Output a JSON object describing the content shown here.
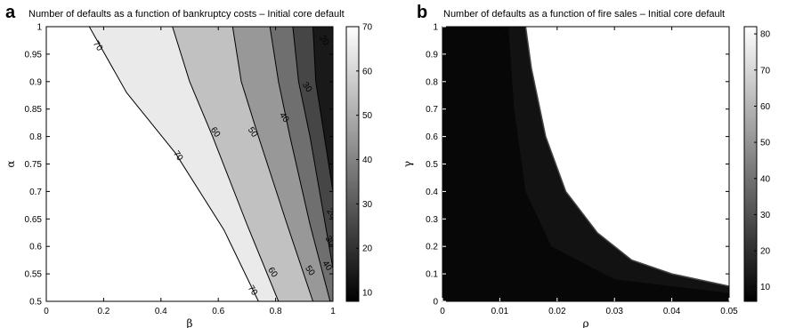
{
  "panels": [
    {
      "letter": "a",
      "title": "Number of defaults as a function of bankruptcy costs – Initial core default",
      "xlabel": "β",
      "ylabel": "α",
      "colorbar_ticks": [
        "10",
        "20",
        "30",
        "40",
        "50",
        "60",
        "70"
      ],
      "contour_labels": [
        "70",
        "70",
        "70",
        "60",
        "60",
        "50",
        "50",
        "40",
        "40",
        "30",
        "20",
        "20",
        "30"
      ]
    },
    {
      "letter": "b",
      "title": "Number of defaults as a function of fire sales – Initial core default",
      "xlabel": "ρ",
      "ylabel": "γ",
      "colorbar_ticks": [
        "10",
        "20",
        "30",
        "40",
        "50",
        "60",
        "70",
        "80"
      ]
    }
  ],
  "chart_data": [
    {
      "type": "heatmap",
      "subtype": "filled-contour",
      "title": "Number of defaults as a function of bankruptcy costs – Initial core default",
      "xlabel": "β",
      "ylabel": "α",
      "xlim": [
        0,
        1
      ],
      "ylim": [
        0.5,
        1
      ],
      "xticks": [
        "0",
        "0.2",
        "0.4",
        "0.6",
        "0.8",
        "1"
      ],
      "yticks": [
        "0.5",
        "0.55",
        "0.6",
        "0.65",
        "0.7",
        "0.75",
        "0.8",
        "0.85",
        "0.9",
        "0.95",
        "1"
      ],
      "colorbar": {
        "min": 8,
        "max": 70,
        "ticks": [
          10,
          20,
          30,
          40,
          50,
          60,
          70
        ],
        "colormap": "gray"
      },
      "contour_levels": [
        {
          "level": 70,
          "points": [
            [
              0.15,
              1.0
            ],
            [
              0.28,
              0.88
            ],
            [
              0.45,
              0.77
            ],
            [
              0.62,
              0.63
            ],
            [
              0.74,
              0.5
            ]
          ]
        },
        {
          "level": 60,
          "points": [
            [
              0.44,
              1.0
            ],
            [
              0.5,
              0.9
            ],
            [
              0.58,
              0.8
            ],
            [
              0.7,
              0.64
            ],
            [
              0.81,
              0.5
            ]
          ]
        },
        {
          "level": 50,
          "points": [
            [
              0.65,
              1.0
            ],
            [
              0.68,
              0.9
            ],
            [
              0.74,
              0.8
            ],
            [
              0.84,
              0.64
            ],
            [
              0.93,
              0.5
            ]
          ]
        },
        {
          "level": 40,
          "points": [
            [
              0.78,
              1.0
            ],
            [
              0.81,
              0.9
            ],
            [
              0.85,
              0.8
            ],
            [
              0.92,
              0.64
            ],
            [
              0.99,
              0.5
            ]
          ]
        },
        {
          "level": 30,
          "points": [
            [
              0.86,
              1.0
            ],
            [
              0.88,
              0.9
            ],
            [
              0.92,
              0.8
            ],
            [
              0.97,
              0.65
            ],
            [
              1.0,
              0.56
            ]
          ]
        },
        {
          "level": 20,
          "points": [
            [
              0.93,
              1.0
            ],
            [
              0.94,
              0.9
            ],
            [
              0.97,
              0.8
            ],
            [
              1.0,
              0.7
            ]
          ]
        }
      ],
      "contour_labels": [
        {
          "text": "70",
          "x": 0.18,
          "y": 0.965
        },
        {
          "text": "70",
          "x": 0.46,
          "y": 0.765
        },
        {
          "text": "70",
          "x": 0.72,
          "y": 0.52
        },
        {
          "text": "60",
          "x": 0.59,
          "y": 0.808
        },
        {
          "text": "60",
          "x": 0.79,
          "y": 0.553
        },
        {
          "text": "50",
          "x": 0.72,
          "y": 0.808
        },
        {
          "text": "50",
          "x": 0.92,
          "y": 0.556
        },
        {
          "text": "40",
          "x": 0.83,
          "y": 0.835
        },
        {
          "text": "40",
          "x": 0.98,
          "y": 0.565
        },
        {
          "text": "30",
          "x": 0.91,
          "y": 0.89
        },
        {
          "text": "20",
          "x": 0.97,
          "y": 0.975
        },
        {
          "text": "20",
          "x": 0.995,
          "y": 0.66
        },
        {
          "text": "30",
          "x": 0.99,
          "y": 0.61
        }
      ]
    },
    {
      "type": "heatmap",
      "subtype": "filled-contour",
      "title": "Number of defaults as a function of fire sales – Initial core default",
      "xlabel": "ρ",
      "ylabel": "γ",
      "xlim": [
        0,
        0.05
      ],
      "ylim": [
        0,
        1
      ],
      "xticks": [
        "0",
        "0.01",
        "0.02",
        "0.03",
        "0.04",
        "0.05"
      ],
      "yticks": [
        "0",
        "0.1",
        "0.2",
        "0.3",
        "0.4",
        "0.5",
        "0.6",
        "0.7",
        "0.8",
        "0.9",
        "1"
      ],
      "colorbar": {
        "min": 6,
        "max": 82,
        "ticks": [
          10,
          20,
          30,
          40,
          50,
          60,
          70,
          80
        ],
        "colormap": "gray"
      },
      "regions": [
        {
          "name": "high-default region",
          "value": 82,
          "boundary": [
            [
              0.0145,
              1.0
            ],
            [
              0.0155,
              0.85
            ],
            [
              0.018,
              0.6
            ],
            [
              0.0215,
              0.4
            ],
            [
              0.027,
              0.25
            ],
            [
              0.033,
              0.15
            ],
            [
              0.04,
              0.1
            ],
            [
              0.05,
              0.055
            ]
          ]
        },
        {
          "name": "low-default region",
          "value": 8,
          "boundary": [
            [
              0.0115,
              1.0
            ],
            [
              0.0125,
              0.7
            ],
            [
              0.0145,
              0.4
            ],
            [
              0.019,
              0.2
            ],
            [
              0.03,
              0.08
            ],
            [
              0.05,
              0.03
            ]
          ]
        }
      ]
    }
  ]
}
